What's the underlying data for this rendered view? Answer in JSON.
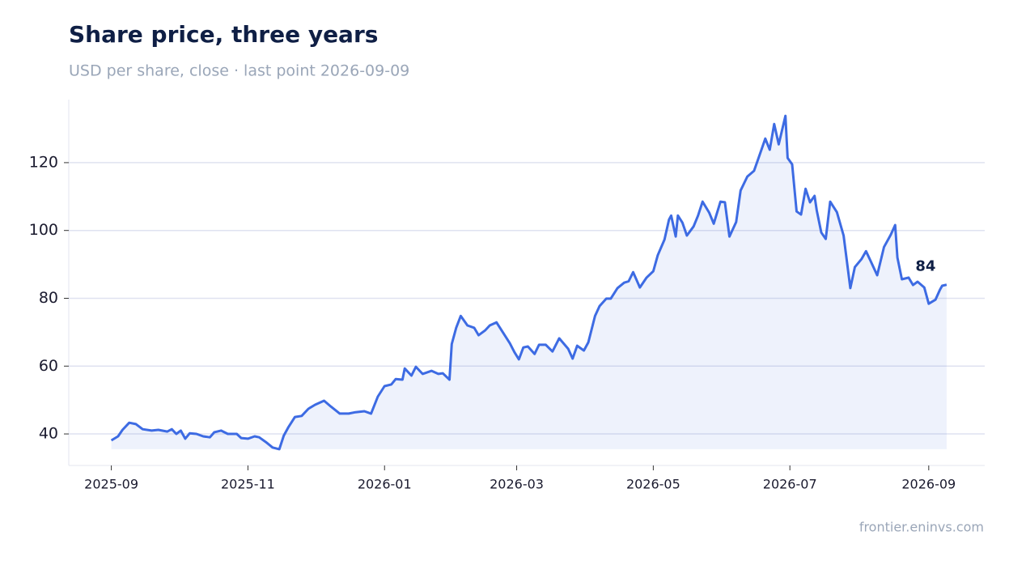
{
  "chart_data": {
    "type": "line",
    "title": "Share price, three years",
    "subtitle": "USD per share, close · last point 2026-09-09",
    "source": "frontier.eninvs.com",
    "grid": true,
    "x": [
      "2025-09-01",
      "2025-09-04",
      "2025-09-06",
      "2025-09-09",
      "2025-09-12",
      "2025-09-15",
      "2025-09-19",
      "2025-09-22",
      "2025-09-26",
      "2025-09-28",
      "2025-09-30",
      "2025-10-02",
      "2025-10-04",
      "2025-10-06",
      "2025-10-09",
      "2025-10-12",
      "2025-10-15",
      "2025-10-17",
      "2025-10-20",
      "2025-10-23",
      "2025-10-27",
      "2025-10-29",
      "2025-11-01",
      "2025-11-04",
      "2025-11-06",
      "2025-11-09",
      "2025-11-12",
      "2025-11-15",
      "2025-11-17",
      "2025-11-19",
      "2025-11-22",
      "2025-11-25",
      "2025-11-28",
      "2025-12-01",
      "2025-12-05",
      "2025-12-08",
      "2025-12-12",
      "2025-12-16",
      "2025-12-19",
      "2025-12-23",
      "2025-12-26",
      "2025-12-29",
      "2026-01-01",
      "2026-01-04",
      "2026-01-06",
      "2026-01-09",
      "2026-01-10",
      "2026-01-13",
      "2026-01-15",
      "2026-01-18",
      "2026-01-22",
      "2026-01-25",
      "2026-01-27",
      "2026-01-30",
      "2026-01-31",
      "2026-02-02",
      "2026-02-04",
      "2026-02-07",
      "2026-02-10",
      "2026-02-12",
      "2026-02-15",
      "2026-02-17",
      "2026-02-20",
      "2026-02-23",
      "2026-02-26",
      "2026-02-28",
      "2026-03-02",
      "2026-03-04",
      "2026-03-06",
      "2026-03-09",
      "2026-03-11",
      "2026-03-14",
      "2026-03-17",
      "2026-03-20",
      "2026-03-24",
      "2026-03-26",
      "2026-03-28",
      "2026-03-31",
      "2026-04-02",
      "2026-04-05",
      "2026-04-07",
      "2026-04-10",
      "2026-04-12",
      "2026-04-15",
      "2026-04-18",
      "2026-04-20",
      "2026-04-22",
      "2026-04-25",
      "2026-04-28",
      "2026-05-01",
      "2026-05-03",
      "2026-05-06",
      "2026-05-08",
      "2026-05-09",
      "2026-05-11",
      "2026-05-12",
      "2026-05-14",
      "2026-05-16",
      "2026-05-19",
      "2026-05-21",
      "2026-05-23",
      "2026-05-26",
      "2026-05-28",
      "2026-05-31",
      "2026-06-02",
      "2026-06-04",
      "2026-06-07",
      "2026-06-09",
      "2026-06-12",
      "2026-06-15",
      "2026-06-17",
      "2026-06-20",
      "2026-06-22",
      "2026-06-24",
      "2026-06-26",
      "2026-06-29",
      "2026-06-30",
      "2026-07-02",
      "2026-07-04",
      "2026-07-06",
      "2026-07-08",
      "2026-07-10",
      "2026-07-12",
      "2026-07-13",
      "2026-07-15",
      "2026-07-17",
      "2026-07-19",
      "2026-07-22",
      "2026-07-25",
      "2026-07-28",
      "2026-07-30",
      "2026-08-02",
      "2026-08-04",
      "2026-08-06",
      "2026-08-09",
      "2026-08-12",
      "2026-08-15",
      "2026-08-17",
      "2026-08-18",
      "2026-08-20",
      "2026-08-23",
      "2026-08-25",
      "2026-08-27",
      "2026-08-30",
      "2026-09-01",
      "2026-09-04",
      "2026-09-06",
      "2026-09-07",
      "2026-09-09"
    ],
    "series": [
      {
        "name": "Close",
        "color": "#3d6be3",
        "values": [
          38.1,
          39.3,
          41.2,
          43.3,
          42.9,
          41.4,
          41,
          41.2,
          40.7,
          41.4,
          40,
          41,
          38.6,
          40.2,
          40,
          39.3,
          39,
          40.5,
          41,
          40,
          40,
          38.8,
          38.6,
          39.3,
          39,
          37.6,
          36,
          35.5,
          39.5,
          41.9,
          45,
          45.3,
          47.4,
          48.6,
          49.8,
          48.1,
          46,
          46,
          46.4,
          46.7,
          46,
          51,
          54.1,
          54.6,
          56.2,
          56,
          59.3,
          57.2,
          59.8,
          57.7,
          58.6,
          57.7,
          57.9,
          56,
          66.5,
          71.3,
          74.8,
          72,
          71.3,
          69.1,
          70.6,
          72,
          72.9,
          69.8,
          66.7,
          64.1,
          62,
          65.5,
          65.8,
          63.6,
          66.3,
          66.3,
          64.3,
          68.2,
          65.1,
          62.2,
          66,
          64.6,
          67,
          74.8,
          77.7,
          79.9,
          79.9,
          83,
          84.6,
          85,
          87.7,
          83.2,
          86.1,
          88,
          92.7,
          97.3,
          103.2,
          104.4,
          98.2,
          104.4,
          102.3,
          98.5,
          101.2,
          104.4,
          108.5,
          105.2,
          102,
          108.5,
          108.3,
          98.2,
          102.5,
          111.8,
          115.9,
          117.6,
          121.4,
          127.1,
          123.8,
          131.4,
          125.4,
          133.8,
          121.4,
          119.5,
          105.6,
          104.7,
          112.3,
          108.3,
          110.2,
          105.9,
          99.4,
          97.5,
          108.5,
          105.4,
          98.5,
          83,
          89.2,
          91.6,
          93.9,
          91.1,
          86.8,
          95.1,
          98.7,
          101.6,
          92,
          85.6,
          86.1,
          83.9,
          84.9,
          83.2,
          78.4,
          79.6,
          82.5,
          83.7,
          84
        ]
      }
    ],
    "xlim": [
      "2025-08-13",
      "2026-09-26"
    ],
    "xticks": [
      {
        "value": "2025-09-01",
        "label": "2025-09"
      },
      {
        "value": "2025-11-01",
        "label": "2025-11"
      },
      {
        "value": "2026-01-01",
        "label": "2026-01"
      },
      {
        "value": "2026-03-01",
        "label": "2026-03"
      },
      {
        "value": "2026-05-01",
        "label": "2026-05"
      },
      {
        "value": "2026-07-01",
        "label": "2026-07"
      },
      {
        "value": "2026-09-01",
        "label": "2026-09"
      }
    ],
    "ylim": [
      30.7,
      138.6
    ],
    "yticks": [
      40,
      60,
      80,
      100,
      120
    ]
  }
}
